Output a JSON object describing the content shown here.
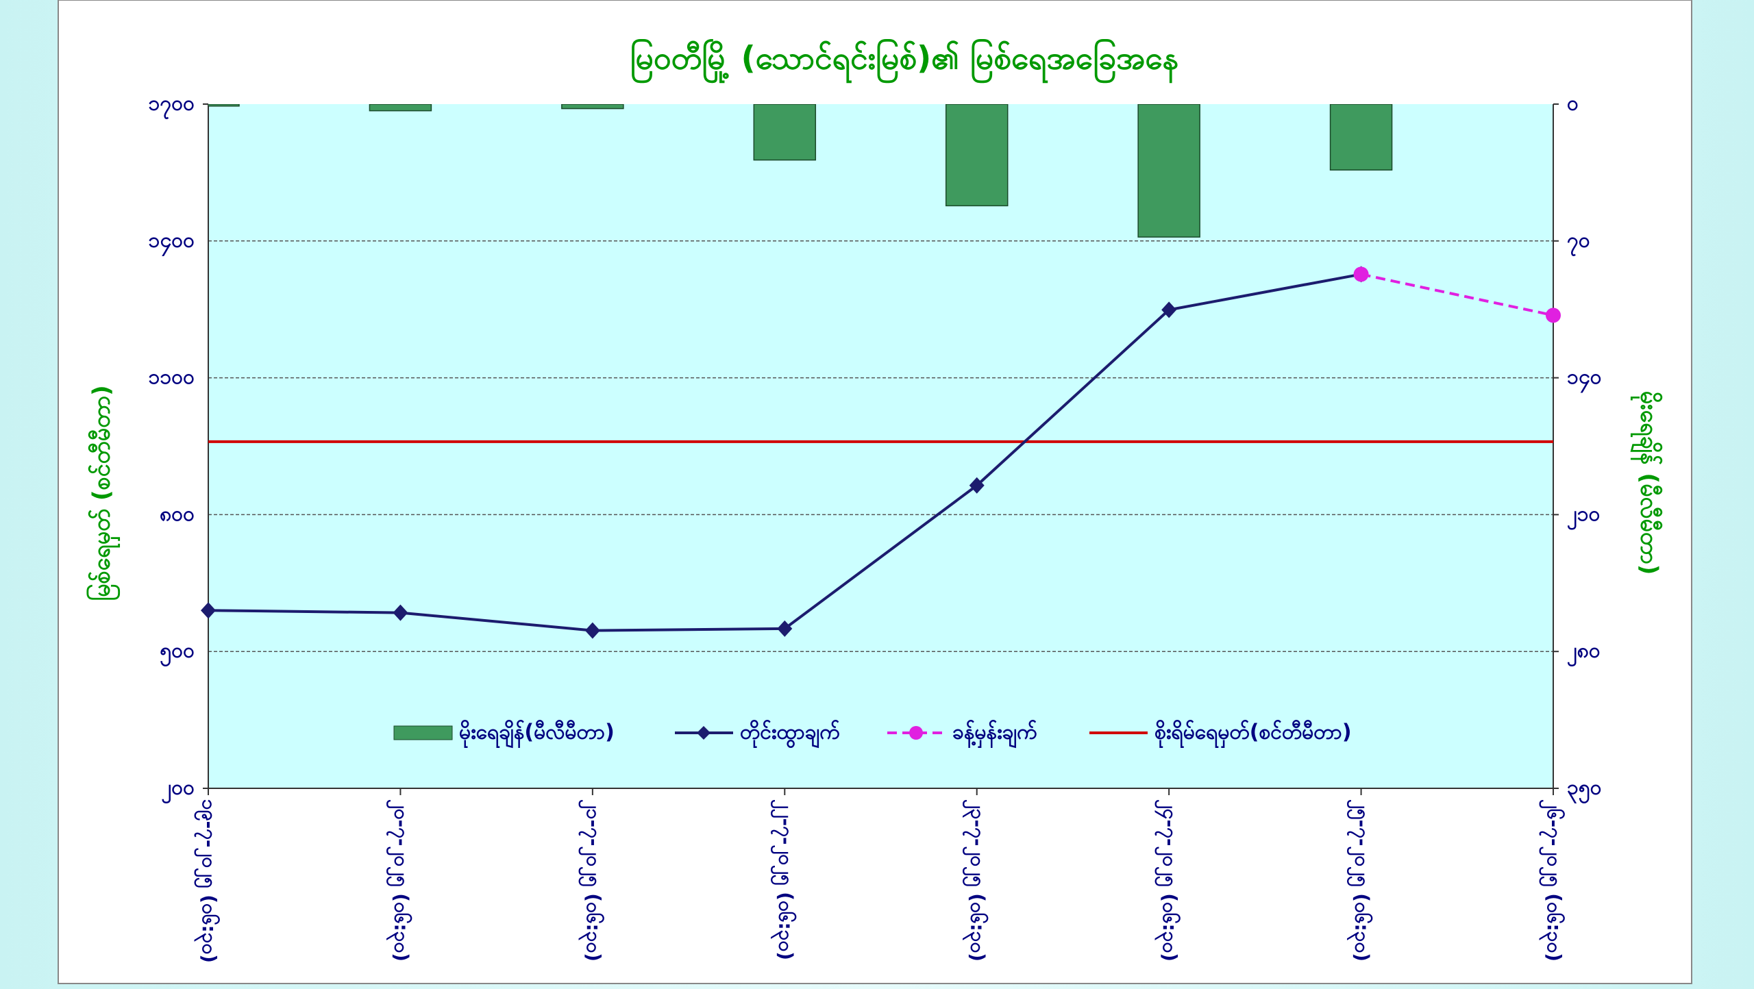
{
  "chart_data": {
    "type": "bar_line_combo",
    "title": "မြဝတီမြို့ (သောင်ရင်းမြစ်)၏ မြစ်ရေအခြေအနေ",
    "ylabel": "မြစ်ရေမှတ် (စင်တီမီတာ)",
    "y2label": "မိုးရေချိန် (မီလီမီတာ)",
    "categories": [
      "၁၉-၇-၂၀၂၅ (၀၆:၃၀)",
      "၂၀-၇-၂၀၂၅ (၀၆:၃၀)",
      "၂၁-၇-၂၀၂၅ (၀၆:၃၀)",
      "၂၂-၇-၂၀၂၅ (၀၆:၃၀)",
      "၂၃-၇-၂၀၂၅ (၀၆:၃၀)",
      "၂၄-၇-၂၀၂၅ (၀၆:၃၀)",
      "၂၅-၇-၂၀၂၅ (၀၆:၃၀)",
      "၂၆-၇-၂၀၂၅ (၀၆:၃၀)"
    ],
    "series": [
      {
        "name": "မိုးရေချိန်(မီလီမီတာ)",
        "type": "bar",
        "axis": "y2",
        "color": "#3f9a5e",
        "values": [
          1,
          3.4,
          2.3,
          28.6,
          52,
          68,
          33.7,
          null
        ]
      },
      {
        "name": "တိုင်းထွာချက်",
        "type": "line",
        "color": "#1c1c6e",
        "marker": "diamond",
        "values": [
          590,
          585,
          546,
          550,
          864,
          1249,
          1327,
          null
        ]
      },
      {
        "name": "ခန့်မှန်းချက်",
        "type": "line",
        "color": "#e020e0",
        "dashed": true,
        "marker": "circle",
        "values": [
          null,
          null,
          null,
          null,
          null,
          null,
          1327,
          1237
        ]
      }
    ],
    "reference_line": {
      "name": "စိုးရိမ်ရေမှတ်(စင်တီမီတာ)",
      "value": 960,
      "color": "#d00000"
    },
    "ylim": [
      200,
      1700
    ],
    "yticks": [
      {
        "value": 200,
        "label": "၂၀၀"
      },
      {
        "value": 500,
        "label": "၅၀၀"
      },
      {
        "value": 800,
        "label": "၈၀၀"
      },
      {
        "value": 1100,
        "label": "၁၁၀၀"
      },
      {
        "value": 1400,
        "label": "၁၄၀၀"
      },
      {
        "value": 1700,
        "label": "၁၇၀၀"
      }
    ],
    "y2lim": [
      350,
      0
    ],
    "y2ticks": [
      {
        "value": 350,
        "label": "၃၅၀"
      },
      {
        "value": 280,
        "label": "၂၈၀"
      },
      {
        "value": 210,
        "label": "၂၁၀"
      },
      {
        "value": 140,
        "label": "၁၄၀"
      },
      {
        "value": 70,
        "label": "၇၀"
      },
      {
        "value": 0,
        "label": "၀"
      }
    ],
    "grid": true,
    "legend": "bottom"
  }
}
